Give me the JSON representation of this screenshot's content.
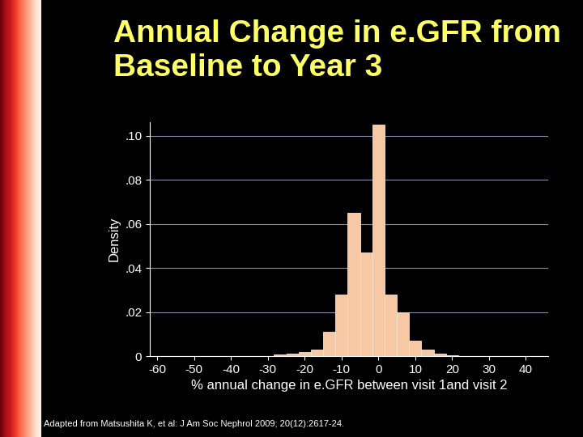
{
  "chart_data": {
    "type": "histogram",
    "title": "Annual Change in e.GFR from Baseline to Year 3",
    "x_label": "% annual change in e.GFR between visit 1and visit 2",
    "y_label": "Density",
    "annotations": [
      "Adapted from Matsushita K, et al: J Am Soc Nephrol 2009; 20(12):2617-24."
    ],
    "bins": [
      -28.33,
      -25,
      -21.67,
      -18.33,
      -15,
      -11.67,
      -8.33,
      -5,
      -1.67,
      1.67,
      5,
      8.33,
      11.67,
      15,
      18.33,
      21.67
    ],
    "values": [
      0.0008,
      0.001,
      0.002,
      0.003,
      0.011,
      0.028,
      0.065,
      0.047,
      0.105,
      0.028,
      0.02,
      0.007,
      0.003,
      0.0012,
      0.0005
    ],
    "color": "#f6c9a4",
    "xlim": [
      -62,
      46
    ],
    "xticks": [
      -60,
      -50,
      -40,
      -30,
      -20,
      -10,
      0,
      10,
      20,
      30,
      40
    ],
    "ylim": [
      0,
      0.106
    ],
    "yticks": [
      0,
      {
        "value": 0.02,
        "label": ".02"
      },
      {
        "value": 0.04,
        "label": ".04"
      },
      {
        "value": 0.06,
        "label": ".06"
      },
      {
        "value": 0.08,
        "label": ".08"
      },
      {
        "value": 0.1,
        "label": ".10"
      }
    ],
    "grid": true
  }
}
